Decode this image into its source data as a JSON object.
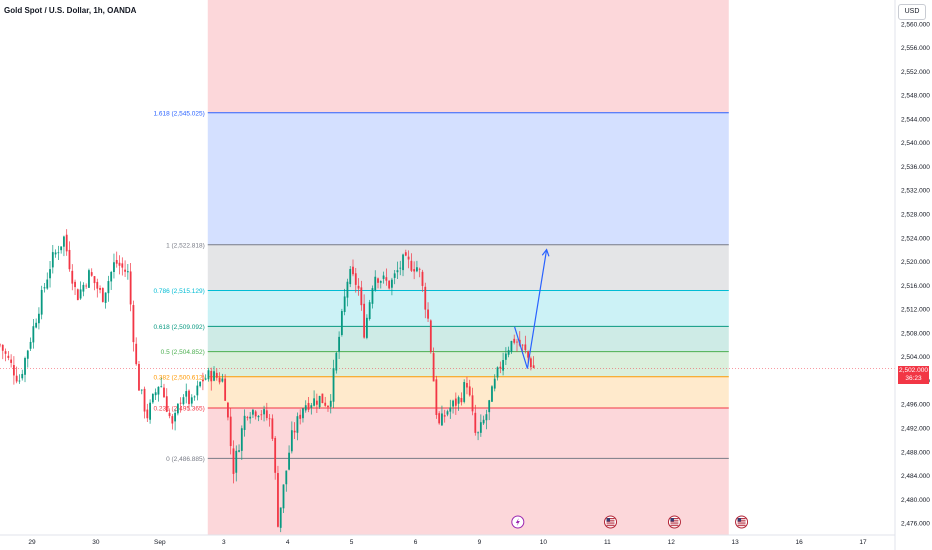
{
  "header": {
    "title": "Gold Spot / U.S. Dollar, 1h, OANDA",
    "currency": "USD"
  },
  "last_price": {
    "value": "2,502.000",
    "countdown": "36:23"
  },
  "colors": {
    "up": "#089981",
    "down": "#f23645",
    "fib_1_618": "#2962ff",
    "fib_1": "#787b86",
    "fib_0_786": "#00bcd4",
    "fib_0_618": "#089981",
    "fib_0_5": "#4caf50",
    "fib_0_382": "#ff9800",
    "fib_0_236": "#f23645",
    "fib_0": "#787b86",
    "projection": "#2962ff"
  },
  "icons": [
    "lightning-event-icon",
    "us-flag-event-icon",
    "us-flag-event-icon",
    "us-flag-event-icon"
  ],
  "chart_data": {
    "type": "candlestick",
    "title": "Gold Spot / U.S. Dollar, 1h, OANDA",
    "ylim": [
      2474,
      2564
    ],
    "y_ticks": [
      "2,476.000",
      "2,480.000",
      "2,484.000",
      "2,488.000",
      "2,492.000",
      "2,496.000",
      "2,500.000",
      "2,504.000",
      "2,508.000",
      "2,512.000",
      "2,516.000",
      "2,520.000",
      "2,524.000",
      "2,528.000",
      "2,532.000",
      "2,536.000",
      "2,540.000",
      "2,544.000",
      "2,548.000",
      "2,552.000",
      "2,556.000",
      "2,560.000"
    ],
    "x_ticks": [
      {
        "label": "29",
        "x": 0.5
      },
      {
        "label": "30",
        "x": 1.5
      },
      {
        "label": "Sep",
        "x": 2.5
      },
      {
        "label": "3",
        "x": 3.5
      },
      {
        "label": "4",
        "x": 4.5
      },
      {
        "label": "5",
        "x": 5.5
      },
      {
        "label": "6",
        "x": 6.5
      },
      {
        "label": "9",
        "x": 7.5
      },
      {
        "label": "10",
        "x": 8.5
      },
      {
        "label": "11",
        "x": 9.5
      },
      {
        "label": "12",
        "x": 10.5
      },
      {
        "label": "13",
        "x": 11.5
      },
      {
        "label": "16",
        "x": 12.5
      },
      {
        "label": "17",
        "x": 13.5
      }
    ],
    "x_range": [
      0,
      14
    ],
    "candles_per_day": 23,
    "candle_anchors": [
      [
        0.0,
        2506
      ],
      [
        0.3,
        2500
      ],
      [
        0.6,
        2512
      ],
      [
        0.8,
        2520
      ],
      [
        1.0,
        2524
      ],
      [
        1.2,
        2514
      ],
      [
        1.4,
        2518
      ],
      [
        1.6,
        2514
      ],
      [
        1.8,
        2520
      ],
      [
        2.0,
        2518
      ],
      [
        2.15,
        2500
      ],
      [
        2.3,
        2494
      ],
      [
        2.5,
        2500
      ],
      [
        2.7,
        2492
      ],
      [
        2.85,
        2498
      ],
      [
        3.0,
        2496
      ],
      [
        3.15,
        2500
      ],
      [
        3.3,
        2501
      ],
      [
        3.5,
        2500
      ],
      [
        3.65,
        2485
      ],
      [
        3.85,
        2495
      ],
      [
        4.05,
        2495
      ],
      [
        4.25,
        2493
      ],
      [
        4.35,
        2476
      ],
      [
        4.55,
        2490
      ],
      [
        4.75,
        2496
      ],
      [
        5.0,
        2497
      ],
      [
        5.15,
        2496
      ],
      [
        5.3,
        2507
      ],
      [
        5.45,
        2518
      ],
      [
        5.6,
        2516
      ],
      [
        5.7,
        2508
      ],
      [
        5.85,
        2518
      ],
      [
        6.1,
        2516
      ],
      [
        6.3,
        2520
      ],
      [
        6.55,
        2519
      ],
      [
        6.7,
        2510
      ],
      [
        6.85,
        2492
      ],
      [
        7.0,
        2495
      ],
      [
        7.2,
        2497
      ],
      [
        7.3,
        2500
      ],
      [
        7.45,
        2490
      ],
      [
        7.6,
        2494
      ],
      [
        7.75,
        2500
      ],
      [
        7.9,
        2505
      ],
      [
        8.05,
        2507
      ],
      [
        8.2,
        2505
      ],
      [
        8.35,
        2502
      ]
    ],
    "fib_levels": [
      {
        "ratio": "1.618",
        "price": 2545.025,
        "label": "1.618 (2,545.025)",
        "color_key": "fib_1_618"
      },
      {
        "ratio": "1",
        "price": 2522.818,
        "label": "1 (2,522.818)",
        "color_key": "fib_1"
      },
      {
        "ratio": "0.786",
        "price": 2515.129,
        "label": "0.786 (2,515.129)",
        "color_key": "fib_0_786"
      },
      {
        "ratio": "0.618",
        "price": 2509.092,
        "label": "0.618 (2,509.092)",
        "color_key": "fib_0_618"
      },
      {
        "ratio": "0.5",
        "price": 2504.852,
        "label": "0.5 (2,504.852)",
        "color_key": "fib_0_5"
      },
      {
        "ratio": "0.382",
        "price": 2500.612,
        "label": "0.382 (2,500.612)",
        "color_key": "fib_0_382"
      },
      {
        "ratio": "0.236",
        "price": 2495.365,
        "label": "0.236 (2,495.365)",
        "color_key": "fib_0_236"
      },
      {
        "ratio": "0",
        "price": 2486.885,
        "label": "0 (2,486.885)",
        "color_key": "fib_0"
      }
    ],
    "fib_range_x": [
      3.25,
      11.4
    ],
    "projection_path": [
      [
        8.05,
        2509
      ],
      [
        8.25,
        2502
      ],
      [
        8.55,
        2522
      ]
    ],
    "event_markers": [
      {
        "x": 8.1,
        "icon": "lightning-event-icon"
      },
      {
        "x": 9.55,
        "icon": "us-flag-event-icon"
      },
      {
        "x": 10.55,
        "icon": "us-flag-event-icon"
      },
      {
        "x": 11.6,
        "icon": "us-flag-event-icon"
      }
    ]
  }
}
